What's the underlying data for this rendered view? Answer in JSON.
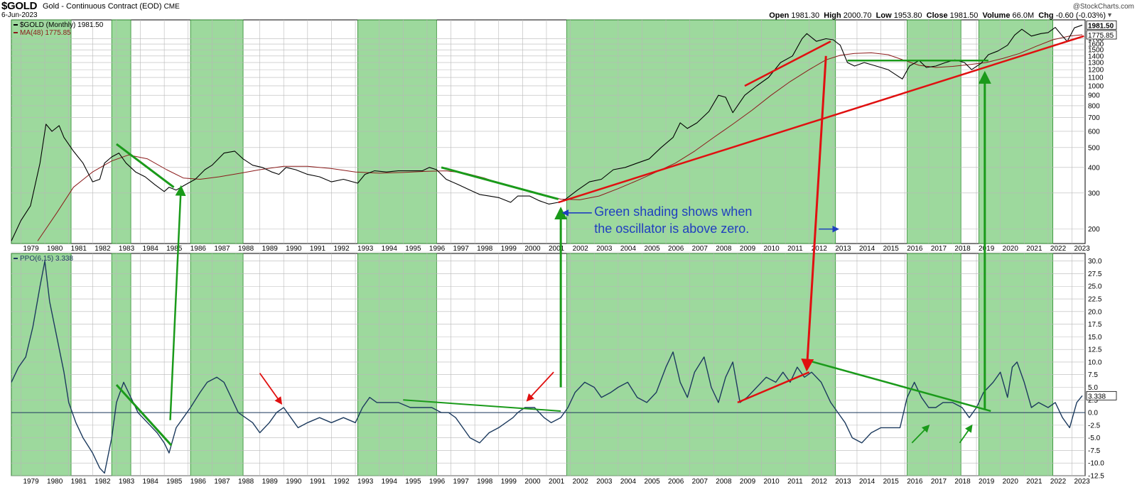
{
  "header": {
    "symbol": "$GOLD",
    "description": "Gold - Continuous Contract (EOD)",
    "exchange": "CME",
    "date": "6-Jun-2023",
    "brand": "@StockCharts.com",
    "open_label": "Open",
    "open": "1981.30",
    "high_label": "High",
    "high": "2000.70",
    "low_label": "Low",
    "low": "1953.80",
    "close_label": "Close",
    "close": "1981.50",
    "volume_label": "Volume",
    "volume": "66.0M",
    "chg_label": "Chg",
    "chg": "-0.60 (-0.03%)"
  },
  "chart_data": [
    {
      "type": "line",
      "panel": "price",
      "y_scale": "log",
      "ylim": [
        170,
        2100
      ],
      "y_ticks": [
        200,
        300,
        400,
        500,
        600,
        700,
        800,
        900,
        1000,
        1100,
        1200,
        1300,
        1400,
        1500,
        1600,
        1700
      ],
      "x_ticks": [
        1979,
        1980,
        1981,
        1982,
        1983,
        1984,
        1985,
        1986,
        1987,
        1988,
        1989,
        1990,
        1991,
        1992,
        1993,
        1994,
        1995,
        1996,
        1997,
        1998,
        1999,
        2000,
        2001,
        2002,
        2003,
        2004,
        2005,
        2006,
        2007,
        2008,
        2009,
        2010,
        2011,
        2012,
        2013,
        2014,
        2015,
        2016,
        2017,
        2018,
        2019,
        2020,
        2021,
        2022,
        2023
      ],
      "legend": [
        {
          "name": "$GOLD (Monthly) 1981.50",
          "color": "#000000"
        },
        {
          "name": "MA(48) 1775.85",
          "color": "#8b1a1a"
        }
      ],
      "last_value_labels": [
        "1981.50",
        "1775.85"
      ],
      "series": [
        {
          "name": "$GOLD (Monthly)",
          "color": "#000000",
          "x": [
            1978.6,
            1979.0,
            1979.4,
            1979.8,
            1980.05,
            1980.3,
            1980.6,
            1980.8,
            1981.2,
            1981.6,
            1982.0,
            1982.3,
            1982.5,
            1982.8,
            1983.1,
            1983.4,
            1983.8,
            1984.2,
            1984.6,
            1985.0,
            1985.2,
            1985.5,
            1985.9,
            1986.3,
            1986.7,
            1987.0,
            1987.5,
            1987.95,
            1988.3,
            1988.7,
            1989.1,
            1989.5,
            1989.8,
            1990.1,
            1990.5,
            1991.0,
            1991.5,
            1992.0,
            1992.5,
            1993.1,
            1993.4,
            1993.8,
            1994.3,
            1994.8,
            1995.3,
            1995.8,
            1996.1,
            1996.4,
            1996.8,
            1997.3,
            1997.8,
            1998.2,
            1998.6,
            1999.0,
            1999.5,
            1999.8,
            2000.3,
            2000.7,
            2001.1,
            2001.5,
            2001.8,
            2002.3,
            2002.8,
            2003.3,
            2003.8,
            2004.3,
            2004.8,
            2005.3,
            2005.8,
            2006.3,
            2006.6,
            2006.9,
            2007.3,
            2007.8,
            2008.2,
            2008.5,
            2008.8,
            2009.3,
            2009.8,
            2010.3,
            2010.8,
            2011.3,
            2011.7,
            2011.9,
            2012.3,
            2012.7,
            2013.0,
            2013.3,
            2013.6,
            2013.9,
            2014.3,
            2014.8,
            2015.3,
            2015.9,
            2016.2,
            2016.6,
            2016.9,
            2017.3,
            2017.7,
            2018.1,
            2018.5,
            2018.8,
            2019.2,
            2019.5,
            2019.9,
            2020.3,
            2020.6,
            2020.9,
            2021.3,
            2021.7,
            2022.0,
            2022.3,
            2022.6,
            2022.8,
            2023.1,
            2023.43
          ],
          "values": [
            175,
            220,
            260,
            420,
            650,
            600,
            640,
            560,
            480,
            420,
            340,
            350,
            420,
            450,
            470,
            420,
            380,
            360,
            330,
            305,
            320,
            310,
            330,
            350,
            390,
            410,
            470,
            480,
            440,
            410,
            400,
            380,
            370,
            400,
            390,
            370,
            360,
            340,
            350,
            335,
            370,
            385,
            380,
            385,
            385,
            385,
            400,
            390,
            350,
            330,
            310,
            295,
            290,
            285,
            270,
            290,
            290,
            275,
            265,
            270,
            280,
            310,
            340,
            350,
            390,
            400,
            420,
            440,
            500,
            560,
            660,
            620,
            660,
            750,
            900,
            880,
            740,
            900,
            1000,
            1100,
            1300,
            1400,
            1700,
            1800,
            1650,
            1700,
            1680,
            1580,
            1300,
            1250,
            1300,
            1250,
            1200,
            1080,
            1250,
            1330,
            1230,
            1250,
            1300,
            1340,
            1300,
            1200,
            1290,
            1420,
            1480,
            1580,
            1770,
            1890,
            1750,
            1800,
            1820,
            1930,
            1750,
            1650,
            1920,
            1981.5
          ]
        },
        {
          "name": "MA(48)",
          "color": "#8b1a1a",
          "x": [
            1979.7,
            1980.5,
            1981.2,
            1982.0,
            1982.8,
            1983.5,
            1984.3,
            1985.1,
            1985.8,
            1986.5,
            1987.3,
            1988.2,
            1989.0,
            1990.0,
            1991.0,
            1992.0,
            1993.0,
            1994.0,
            1995.0,
            1996.0,
            1996.8,
            1997.6,
            1998.4,
            1999.2,
            2000.0,
            2000.8,
            2001.6,
            2002.4,
            2003.2,
            2004.0,
            2004.8,
            2005.6,
            2006.4,
            2007.2,
            2008.0,
            2008.8,
            2009.6,
            2010.4,
            2011.2,
            2012.0,
            2012.7,
            2013.3,
            2013.9,
            2014.6,
            2015.3,
            2016.0,
            2016.6,
            2017.3,
            2018.0,
            2018.7,
            2019.4,
            2020.1,
            2020.8,
            2021.5,
            2022.2,
            2022.9,
            2023.43
          ],
          "values": [
            175,
            240,
            320,
            380,
            430,
            460,
            440,
            390,
            355,
            350,
            360,
            375,
            390,
            405,
            405,
            395,
            380,
            375,
            378,
            383,
            385,
            375,
            355,
            330,
            310,
            295,
            280,
            278,
            290,
            315,
            345,
            380,
            420,
            480,
            560,
            650,
            760,
            900,
            1050,
            1200,
            1340,
            1410,
            1440,
            1450,
            1420,
            1330,
            1260,
            1230,
            1245,
            1270,
            1300,
            1360,
            1440,
            1560,
            1680,
            1750,
            1775.85
          ]
        }
      ],
      "annotation": [
        "Green shading shows when",
        "the oscillator is above zero."
      ]
    },
    {
      "type": "line",
      "panel": "oscillator",
      "ylim": [
        -12.5,
        31.5
      ],
      "y_ticks": [
        -12.5,
        -10.0,
        -7.5,
        -5.0,
        -2.5,
        0.0,
        2.5,
        5.0,
        7.5,
        10.0,
        12.5,
        15.0,
        17.5,
        20.0,
        22.5,
        25.0,
        27.5,
        30.0
      ],
      "x_ticks": [
        1979,
        1980,
        1981,
        1982,
        1983,
        1984,
        1985,
        1986,
        1987,
        1988,
        1989,
        1990,
        1991,
        1992,
        1993,
        1994,
        1995,
        1996,
        1997,
        1998,
        1999,
        2000,
        2001,
        2002,
        2003,
        2004,
        2005,
        2006,
        2007,
        2008,
        2009,
        2010,
        2011,
        2012,
        2013,
        2014,
        2015,
        2016,
        2017,
        2018,
        2019,
        2020,
        2021,
        2022,
        2023
      ],
      "legend": [
        {
          "name": "PPO(6,15) 3.338",
          "color": "#1c3a5e"
        }
      ],
      "last_value_labels": [
        "3.338"
      ],
      "series": [
        {
          "name": "PPO(6,15)",
          "color": "#1c3a5e",
          "x": [
            1978.6,
            1978.9,
            1979.2,
            1979.5,
            1979.8,
            1980.0,
            1980.2,
            1980.5,
            1980.8,
            1981.0,
            1981.3,
            1981.6,
            1982.0,
            1982.3,
            1982.5,
            1982.8,
            1983.0,
            1983.3,
            1983.6,
            1983.9,
            1984.3,
            1984.7,
            1985.0,
            1985.2,
            1985.5,
            1985.8,
            1986.1,
            1986.5,
            1986.8,
            1987.2,
            1987.5,
            1987.8,
            1988.1,
            1988.4,
            1988.7,
            1989.0,
            1989.4,
            1989.7,
            1990.0,
            1990.3,
            1990.6,
            1991.0,
            1991.5,
            1992.0,
            1992.5,
            1993.0,
            1993.3,
            1993.6,
            1993.9,
            1994.3,
            1994.8,
            1995.3,
            1995.8,
            1996.2,
            1996.6,
            1996.9,
            1997.2,
            1997.5,
            1997.8,
            1998.2,
            1998.6,
            1999.0,
            1999.3,
            1999.6,
            1999.8,
            2000.1,
            2000.5,
            2000.9,
            2001.2,
            2001.6,
            2001.9,
            2002.2,
            2002.6,
            2003.0,
            2003.3,
            2003.7,
            2004.0,
            2004.4,
            2004.8,
            2005.2,
            2005.6,
            2006.0,
            2006.3,
            2006.6,
            2006.9,
            2007.2,
            2007.6,
            2007.9,
            2008.2,
            2008.5,
            2008.8,
            2009.1,
            2009.4,
            2009.8,
            2010.2,
            2010.6,
            2010.9,
            2011.2,
            2011.5,
            2011.8,
            2012.1,
            2012.5,
            2012.9,
            2013.2,
            2013.5,
            2013.8,
            2014.2,
            2014.6,
            2015.0,
            2015.4,
            2015.8,
            2016.1,
            2016.4,
            2016.7,
            2017.0,
            2017.3,
            2017.6,
            2018.0,
            2018.4,
            2018.7,
            2019.0,
            2019.3,
            2019.7,
            2020.0,
            2020.3,
            2020.5,
            2020.7,
            2021.0,
            2021.3,
            2021.6,
            2022.0,
            2022.3,
            2022.6,
            2022.9,
            2023.2,
            2023.43
          ],
          "values": [
            6,
            9,
            11,
            17,
            25,
            30,
            22,
            15,
            8,
            2,
            -2,
            -5,
            -8,
            -11,
            -12,
            -5,
            2,
            6,
            3,
            0,
            -2,
            -4,
            -6,
            -8,
            -3,
            -1,
            1,
            4,
            6,
            7,
            6,
            3,
            0,
            -1,
            -2,
            -4,
            -2,
            0,
            1,
            -1,
            -3,
            -2,
            -1,
            -2,
            -1,
            -2,
            1,
            3,
            2,
            2,
            2,
            1,
            1,
            1,
            0,
            0,
            -1,
            -3,
            -5,
            -6,
            -4,
            -3,
            -2,
            -1,
            0,
            1,
            1,
            -1,
            -2,
            -1,
            1,
            4,
            6,
            5,
            3,
            4,
            5,
            6,
            3,
            2,
            4,
            9,
            12,
            6,
            3,
            8,
            11,
            5,
            2,
            7,
            10,
            2,
            3,
            5,
            7,
            6,
            8,
            6,
            9,
            7,
            8,
            6,
            2,
            0,
            -2,
            -5,
            -6,
            -4,
            -3,
            -3,
            -3,
            3,
            6,
            3,
            1,
            1,
            2,
            2,
            1,
            -1,
            1,
            4,
            6,
            8,
            3,
            9,
            10,
            6,
            1,
            2,
            1,
            2,
            -1,
            -3,
            2,
            3.338
          ]
        }
      ],
      "zero_line": 0.0
    }
  ],
  "shaded_periods": [
    [
      1978.6,
      1981.1
    ],
    [
      1982.8,
      1983.6
    ],
    [
      1986.1,
      1988.3
    ],
    [
      1993.1,
      1996.4
    ],
    [
      2001.85,
      2013.1
    ],
    [
      2016.1,
      2018.35
    ],
    [
      2019.1,
      2022.2
    ]
  ]
}
